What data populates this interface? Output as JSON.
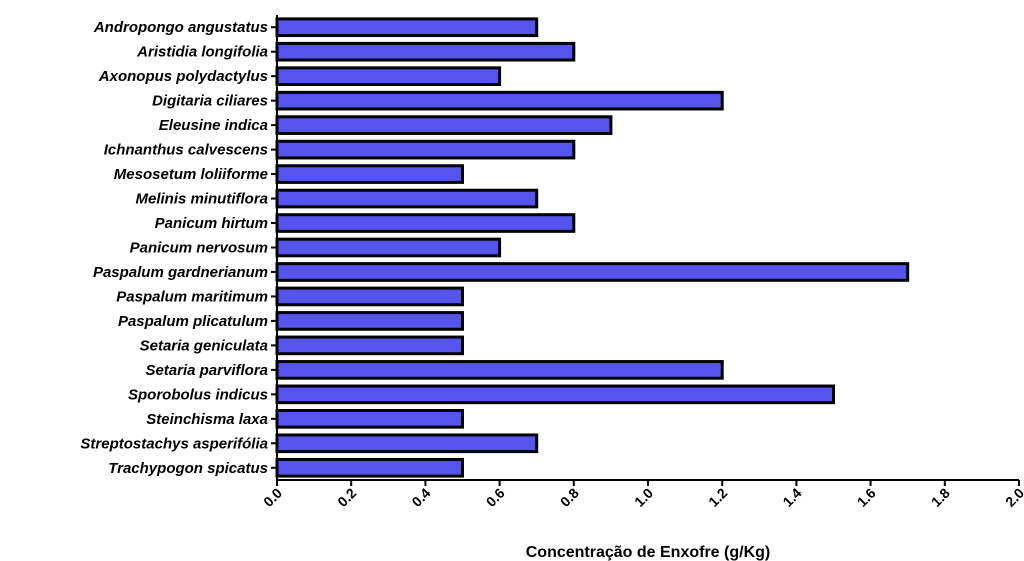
{
  "chart_data": {
    "type": "bar",
    "orientation": "horizontal",
    "title": "",
    "xlabel": "Concentração de Enxofre (g/Kg)",
    "ylabel": "",
    "xlim": [
      0,
      2.0
    ],
    "xticks": [
      "0.0",
      "0.2",
      "0.4",
      "0.6",
      "0.8",
      "1.0",
      "1.2",
      "1.4",
      "1.6",
      "1.8",
      "2.0"
    ],
    "grid": false,
    "legend": "none",
    "bar_color": "#5555ee",
    "edge_color": "#000000",
    "categories": [
      "Andropongo angustatus",
      "Aristidia longifolia",
      "Axonopus polydactylus",
      "Digitaria ciliares",
      "Eleusine indica",
      "Ichnanthus calvescens",
      "Mesosetum loliiforme",
      "Melinis minutiflora",
      "Panicum hirtum",
      "Panicum nervosum",
      "Paspalum gardnerianum",
      "Paspalum maritimum",
      "Paspalum plicatulum",
      "Setaria geniculata",
      "Setaria parviflora",
      "Sporobolus indicus",
      "Steinchisma laxa",
      "Streptostachys asperifólia",
      "Trachypogon spicatus"
    ],
    "values": [
      0.7,
      0.8,
      0.6,
      1.2,
      0.9,
      0.8,
      0.5,
      0.7,
      0.8,
      0.6,
      1.7,
      0.5,
      0.5,
      0.5,
      1.2,
      1.5,
      0.5,
      0.7,
      0.5
    ]
  }
}
